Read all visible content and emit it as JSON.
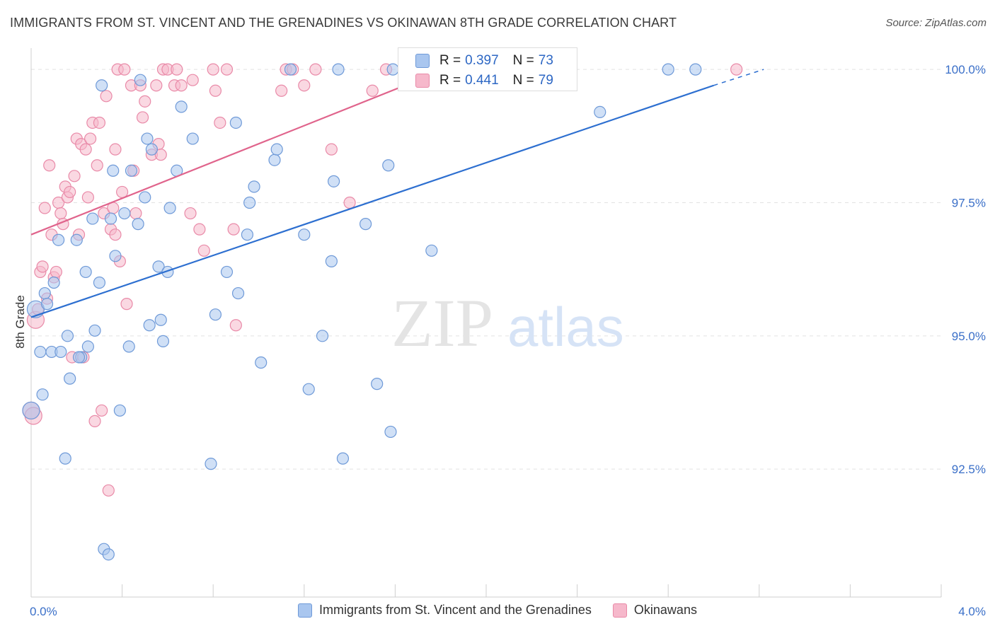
{
  "title": "IMMIGRANTS FROM ST. VINCENT AND THE GRENADINES VS OKINAWAN 8TH GRADE CORRELATION CHART",
  "source": "Source: ZipAtlas.com",
  "watermark": {
    "zip": "ZIP",
    "atlas": "atlas"
  },
  "stats": {
    "blue": {
      "r_label": "R = ",
      "r": "0.397",
      "n_label": "N = ",
      "n": "73"
    },
    "pink": {
      "r_label": "R = ",
      "r": "0.441",
      "n_label": "N = ",
      "n": "79"
    }
  },
  "legend": {
    "blue_label": "Immigrants from St. Vincent and the Grenadines",
    "pink_label": "Okinawans"
  },
  "colors": {
    "blue_fill": "#a9c6ef",
    "blue_stroke": "#6f9ad8",
    "blue_line": "#2d6fd0",
    "pink_fill": "#f6b8cb",
    "pink_stroke": "#e98aa8",
    "pink_line": "#e0648c"
  },
  "chart_data": {
    "type": "scatter",
    "xlabel": "",
    "ylabel": "8th Grade",
    "xlim": [
      0,
      4
    ],
    "ylim": [
      90.1,
      100.4
    ],
    "x_tick_labels": [
      {
        "value": 0,
        "label": "0.0%"
      },
      {
        "value": 4,
        "label": "4.0%"
      }
    ],
    "y_tick_labels": [
      {
        "value": 92.5,
        "label": "92.5%"
      },
      {
        "value": 95.0,
        "label": "95.0%"
      },
      {
        "value": 97.5,
        "label": "97.5%"
      },
      {
        "value": 100.0,
        "label": "100.0%"
      }
    ],
    "grid": true,
    "series": [
      {
        "name": "Immigrants from St. Vincent and the Grenadines",
        "trend": {
          "x": [
            0.0,
            3.0
          ],
          "y": [
            95.35,
            99.7
          ],
          "dash_to": [
            3.22,
            100.0
          ]
        },
        "points": [
          [
            0.0,
            93.6
          ],
          [
            0.02,
            95.5
          ],
          [
            0.04,
            94.7
          ],
          [
            0.05,
            93.9
          ],
          [
            0.06,
            95.8
          ],
          [
            0.07,
            95.6
          ],
          [
            0.09,
            94.7
          ],
          [
            0.1,
            96.0
          ],
          [
            0.12,
            96.8
          ],
          [
            0.15,
            92.7
          ],
          [
            0.16,
            95.0
          ],
          [
            0.17,
            94.2
          ],
          [
            0.2,
            96.8
          ],
          [
            0.22,
            94.6
          ],
          [
            0.24,
            96.2
          ],
          [
            0.25,
            94.8
          ],
          [
            0.27,
            97.2
          ],
          [
            0.28,
            95.1
          ],
          [
            0.3,
            96.0
          ],
          [
            0.31,
            99.7
          ],
          [
            0.32,
            91.0
          ],
          [
            0.34,
            90.9
          ],
          [
            0.35,
            97.2
          ],
          [
            0.36,
            98.1
          ],
          [
            0.37,
            96.5
          ],
          [
            0.39,
            93.6
          ],
          [
            0.41,
            97.3
          ],
          [
            0.43,
            94.8
          ],
          [
            0.44,
            98.1
          ],
          [
            0.47,
            97.1
          ],
          [
            0.48,
            99.8
          ],
          [
            0.5,
            97.6
          ],
          [
            0.51,
            98.7
          ],
          [
            0.52,
            95.2
          ],
          [
            0.53,
            98.5
          ],
          [
            0.56,
            96.3
          ],
          [
            0.57,
            95.3
          ],
          [
            0.58,
            94.9
          ],
          [
            0.6,
            96.2
          ],
          [
            0.61,
            97.4
          ],
          [
            0.64,
            98.1
          ],
          [
            0.66,
            99.3
          ],
          [
            0.71,
            98.7
          ],
          [
            0.79,
            92.6
          ],
          [
            0.81,
            95.4
          ],
          [
            0.9,
            99.0
          ],
          [
            0.91,
            95.8
          ],
          [
            0.95,
            96.9
          ],
          [
            0.96,
            97.5
          ],
          [
            0.98,
            97.8
          ],
          [
            1.01,
            94.5
          ],
          [
            1.07,
            98.3
          ],
          [
            1.08,
            98.5
          ],
          [
            1.14,
            100.0
          ],
          [
            1.2,
            96.9
          ],
          [
            1.22,
            94.0
          ],
          [
            1.28,
            95.0
          ],
          [
            1.32,
            96.4
          ],
          [
            1.33,
            97.9
          ],
          [
            1.35,
            100.0
          ],
          [
            1.37,
            92.7
          ],
          [
            1.47,
            97.1
          ],
          [
            1.52,
            94.1
          ],
          [
            1.57,
            98.2
          ],
          [
            1.58,
            93.2
          ],
          [
            1.59,
            100.0
          ],
          [
            1.76,
            96.6
          ],
          [
            2.5,
            99.2
          ],
          [
            2.8,
            100.0
          ],
          [
            2.92,
            100.0
          ],
          [
            0.21,
            94.6
          ],
          [
            0.13,
            94.7
          ],
          [
            0.86,
            96.2
          ]
        ]
      },
      {
        "name": "Okinawans",
        "trend": {
          "x": [
            0.0,
            1.79
          ],
          "y": [
            96.9,
            99.95
          ]
        },
        "points": [
          [
            0.0,
            93.6
          ],
          [
            0.01,
            93.5
          ],
          [
            0.02,
            95.3
          ],
          [
            0.03,
            95.5
          ],
          [
            0.04,
            96.2
          ],
          [
            0.05,
            96.3
          ],
          [
            0.06,
            97.4
          ],
          [
            0.07,
            95.7
          ],
          [
            0.08,
            98.2
          ],
          [
            0.09,
            96.9
          ],
          [
            0.1,
            96.1
          ],
          [
            0.11,
            96.2
          ],
          [
            0.12,
            97.5
          ],
          [
            0.13,
            97.3
          ],
          [
            0.14,
            97.1
          ],
          [
            0.15,
            97.8
          ],
          [
            0.16,
            97.6
          ],
          [
            0.17,
            97.7
          ],
          [
            0.18,
            94.6
          ],
          [
            0.19,
            98.0
          ],
          [
            0.2,
            98.7
          ],
          [
            0.21,
            96.9
          ],
          [
            0.22,
            98.6
          ],
          [
            0.23,
            94.6
          ],
          [
            0.24,
            98.5
          ],
          [
            0.25,
            97.6
          ],
          [
            0.26,
            98.7
          ],
          [
            0.27,
            99.0
          ],
          [
            0.28,
            93.4
          ],
          [
            0.29,
            98.2
          ],
          [
            0.3,
            99.0
          ],
          [
            0.31,
            93.6
          ],
          [
            0.32,
            97.3
          ],
          [
            0.33,
            99.5
          ],
          [
            0.34,
            92.1
          ],
          [
            0.35,
            97.0
          ],
          [
            0.36,
            97.4
          ],
          [
            0.37,
            98.5
          ],
          [
            0.38,
            100.0
          ],
          [
            0.39,
            96.4
          ],
          [
            0.4,
            97.7
          ],
          [
            0.41,
            100.0
          ],
          [
            0.42,
            95.6
          ],
          [
            0.44,
            99.7
          ],
          [
            0.45,
            98.1
          ],
          [
            0.46,
            97.3
          ],
          [
            0.48,
            99.7
          ],
          [
            0.49,
            99.1
          ],
          [
            0.5,
            99.4
          ],
          [
            0.53,
            98.4
          ],
          [
            0.55,
            99.7
          ],
          [
            0.56,
            98.6
          ],
          [
            0.57,
            98.4
          ],
          [
            0.58,
            100.0
          ],
          [
            0.6,
            100.0
          ],
          [
            0.63,
            99.7
          ],
          [
            0.64,
            100.0
          ],
          [
            0.66,
            99.7
          ],
          [
            0.7,
            97.3
          ],
          [
            0.71,
            99.8
          ],
          [
            0.74,
            97.0
          ],
          [
            0.76,
            96.6
          ],
          [
            0.8,
            100.0
          ],
          [
            0.81,
            99.6
          ],
          [
            0.83,
            99.0
          ],
          [
            0.86,
            100.0
          ],
          [
            0.89,
            97.0
          ],
          [
            0.9,
            95.2
          ],
          [
            1.1,
            99.6
          ],
          [
            1.12,
            100.0
          ],
          [
            1.15,
            100.0
          ],
          [
            1.2,
            99.7
          ],
          [
            1.25,
            100.0
          ],
          [
            1.32,
            98.5
          ],
          [
            1.4,
            97.5
          ],
          [
            1.5,
            99.6
          ],
          [
            1.56,
            100.0
          ],
          [
            3.1,
            100.0
          ],
          [
            0.37,
            96.9
          ]
        ]
      }
    ]
  }
}
